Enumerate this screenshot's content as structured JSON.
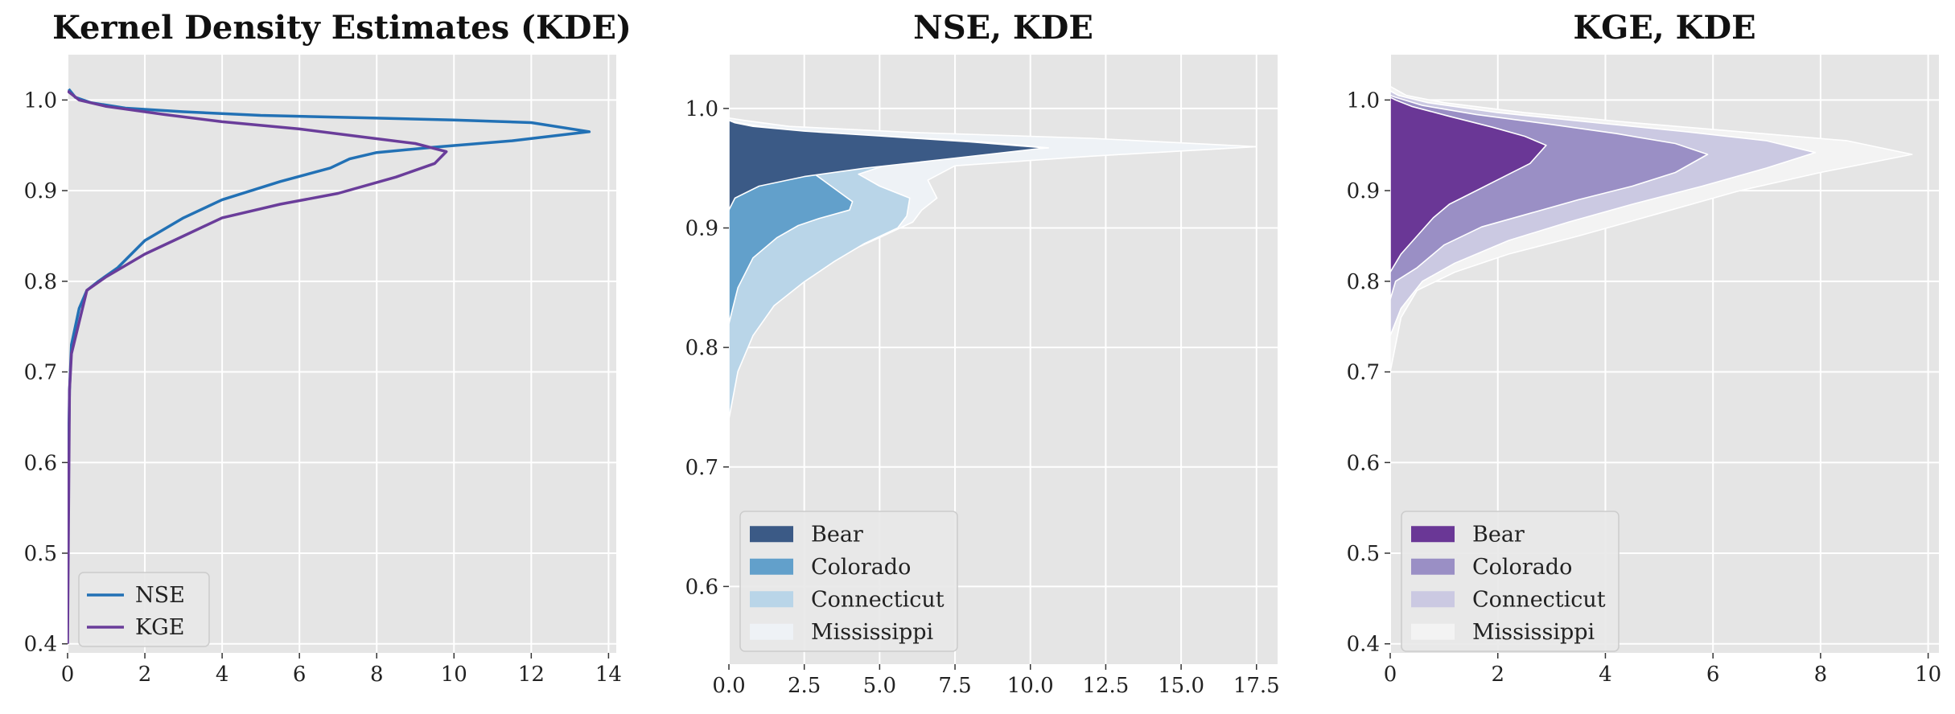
{
  "chart_data": [
    {
      "type": "line",
      "title": "Kernel Density Estimates (KDE)",
      "xlabel": "",
      "ylabel": "",
      "xlim": [
        0,
        14.2
      ],
      "ylim": [
        0.39,
        1.05
      ],
      "xticks": [
        0,
        2,
        4,
        6,
        8,
        10,
        12,
        14
      ],
      "xtick_labels": [
        "0",
        "2",
        "4",
        "6",
        "8",
        "10",
        "12",
        "14"
      ],
      "yticks": [
        0.4,
        0.5,
        0.6,
        0.7,
        0.8,
        0.9,
        1.0
      ],
      "ytick_labels": [
        "0.4",
        "0.5",
        "0.6",
        "0.7",
        "0.8",
        "0.9",
        "1.0"
      ],
      "grid": true,
      "legend": "lower-left",
      "series": [
        {
          "name": "NSE",
          "color": "#2271b5",
          "points": [
            [
              0.0,
              0.46
            ],
            [
              0.02,
              0.6
            ],
            [
              0.05,
              0.68
            ],
            [
              0.1,
              0.73
            ],
            [
              0.3,
              0.77
            ],
            [
              0.5,
              0.79
            ],
            [
              0.8,
              0.8
            ],
            [
              1.3,
              0.815
            ],
            [
              2.0,
              0.845
            ],
            [
              3.0,
              0.87
            ],
            [
              4.0,
              0.89
            ],
            [
              5.5,
              0.91
            ],
            [
              6.8,
              0.925
            ],
            [
              7.3,
              0.935
            ],
            [
              8.0,
              0.942
            ],
            [
              9.5,
              0.948
            ],
            [
              11.5,
              0.955
            ],
            [
              13.5,
              0.965
            ],
            [
              12.0,
              0.975
            ],
            [
              10.0,
              0.978
            ],
            [
              8.0,
              0.98
            ],
            [
              5.0,
              0.983
            ],
            [
              3.0,
              0.987
            ],
            [
              1.5,
              0.991
            ],
            [
              0.6,
              0.997
            ],
            [
              0.2,
              1.003
            ],
            [
              0.03,
              1.012
            ]
          ]
        },
        {
          "name": "KGE",
          "color": "#6a3d9a",
          "points": [
            [
              0.0,
              0.4
            ],
            [
              0.05,
              0.68
            ],
            [
              0.1,
              0.72
            ],
            [
              0.3,
              0.755
            ],
            [
              0.5,
              0.79
            ],
            [
              1.0,
              0.805
            ],
            [
              2.0,
              0.83
            ],
            [
              3.0,
              0.85
            ],
            [
              4.0,
              0.87
            ],
            [
              5.5,
              0.885
            ],
            [
              7.0,
              0.897
            ],
            [
              8.5,
              0.915
            ],
            [
              9.5,
              0.93
            ],
            [
              9.8,
              0.943
            ],
            [
              9.0,
              0.952
            ],
            [
              7.5,
              0.96
            ],
            [
              6.0,
              0.968
            ],
            [
              4.0,
              0.976
            ],
            [
              2.5,
              0.984
            ],
            [
              1.0,
              0.993
            ],
            [
              0.3,
              1.0
            ],
            [
              0.0,
              1.01
            ]
          ]
        }
      ]
    },
    {
      "type": "area",
      "title": "NSE, KDE",
      "xlabel": "",
      "ylabel": "",
      "xlim": [
        0,
        18.2
      ],
      "ylim": [
        0.535,
        1.045
      ],
      "xticks": [
        0,
        2.5,
        5,
        7.5,
        10,
        12.5,
        15,
        17.5
      ],
      "xtick_labels": [
        "0.0",
        "2.5",
        "5.0",
        "7.5",
        "10.0",
        "12.5",
        "15.0",
        "17.5"
      ],
      "yticks": [
        0.6,
        0.7,
        0.8,
        0.9,
        1.0
      ],
      "ytick_labels": [
        "0.6",
        "0.7",
        "0.8",
        "0.9",
        "1.0"
      ],
      "grid": true,
      "legend": "lower-left",
      "series": [
        {
          "name": "Mississippi",
          "color": "#eef2f6",
          "points": [
            [
              0,
              0.76
            ],
            [
              0.5,
              0.8
            ],
            [
              1.3,
              0.83
            ],
            [
              2.3,
              0.855
            ],
            [
              3.5,
              0.875
            ],
            [
              5.0,
              0.892
            ],
            [
              6.1,
              0.905
            ],
            [
              6.4,
              0.915
            ],
            [
              6.9,
              0.925
            ],
            [
              6.6,
              0.94
            ],
            [
              7.5,
              0.952
            ],
            [
              12.0,
              0.96
            ],
            [
              17.5,
              0.968
            ],
            [
              12.0,
              0.975
            ],
            [
              6.0,
              0.98
            ],
            [
              2.0,
              0.985
            ],
            [
              0.5,
              0.99
            ],
            [
              0,
              0.992
            ]
          ]
        },
        {
          "name": "Connecticut",
          "color": "#b9d5e8",
          "points": [
            [
              0,
              0.74
            ],
            [
              0.3,
              0.78
            ],
            [
              0.8,
              0.81
            ],
            [
              1.5,
              0.835
            ],
            [
              2.5,
              0.855
            ],
            [
              3.5,
              0.872
            ],
            [
              4.5,
              0.887
            ],
            [
              5.6,
              0.9
            ],
            [
              5.9,
              0.91
            ],
            [
              6.0,
              0.925
            ],
            [
              5.0,
              0.935
            ],
            [
              4.3,
              0.945
            ],
            [
              5.5,
              0.955
            ],
            [
              8.0,
              0.962
            ],
            [
              10.6,
              0.967
            ],
            [
              8.0,
              0.973
            ],
            [
              4.0,
              0.978
            ],
            [
              1.5,
              0.983
            ],
            [
              0.3,
              0.988
            ],
            [
              0,
              0.99
            ]
          ]
        },
        {
          "name": "Colorado",
          "color": "#62a0cb",
          "points": [
            [
              0,
              0.82
            ],
            [
              0.3,
              0.85
            ],
            [
              0.8,
              0.875
            ],
            [
              1.6,
              0.892
            ],
            [
              2.3,
              0.902
            ],
            [
              3.0,
              0.908
            ],
            [
              4.0,
              0.915
            ],
            [
              4.1,
              0.922
            ],
            [
              3.5,
              0.933
            ],
            [
              2.9,
              0.944
            ],
            [
              3.6,
              0.952
            ],
            [
              6.0,
              0.96
            ],
            [
              10.4,
              0.967
            ],
            [
              7.0,
              0.973
            ],
            [
              3.5,
              0.978
            ],
            [
              1.2,
              0.983
            ],
            [
              0.2,
              0.987
            ],
            [
              0,
              0.988
            ]
          ]
        },
        {
          "name": "Bear",
          "color": "#3b5a86",
          "points": [
            [
              0,
              0.915
            ],
            [
              0.2,
              0.925
            ],
            [
              1.0,
              0.935
            ],
            [
              2.5,
              0.943
            ],
            [
              4.5,
              0.95
            ],
            [
              7.0,
              0.957
            ],
            [
              10.5,
              0.967
            ],
            [
              8.0,
              0.972
            ],
            [
              5.0,
              0.977
            ],
            [
              2.5,
              0.981
            ],
            [
              0.8,
              0.985
            ],
            [
              0.2,
              0.988
            ],
            [
              0,
              0.99
            ]
          ]
        }
      ]
    },
    {
      "type": "area",
      "title": "KGE, KDE",
      "xlabel": "",
      "ylabel": "",
      "xlim": [
        0,
        10.2
      ],
      "ylim": [
        0.39,
        1.05
      ],
      "xticks": [
        0,
        2,
        4,
        6,
        8,
        10
      ],
      "xtick_labels": [
        "0",
        "2",
        "4",
        "6",
        "8",
        "10"
      ],
      "yticks": [
        0.4,
        0.5,
        0.6,
        0.7,
        0.8,
        0.9,
        1.0
      ],
      "ytick_labels": [
        "0.4",
        "0.5",
        "0.6",
        "0.7",
        "0.8",
        "0.9",
        "1.0"
      ],
      "grid": true,
      "legend": "lower-left",
      "series": [
        {
          "name": "Mississippi",
          "color": "#f3f3f3",
          "points": [
            [
              0,
              0.7
            ],
            [
              0.1,
              0.73
            ],
            [
              0.2,
              0.76
            ],
            [
              0.5,
              0.79
            ],
            [
              1.2,
              0.81
            ],
            [
              2.2,
              0.83
            ],
            [
              3.5,
              0.85
            ],
            [
              5.0,
              0.875
            ],
            [
              6.5,
              0.9
            ],
            [
              8.0,
              0.92
            ],
            [
              9.7,
              0.94
            ],
            [
              8.5,
              0.955
            ],
            [
              6.5,
              0.965
            ],
            [
              4.5,
              0.975
            ],
            [
              2.5,
              0.986
            ],
            [
              1.0,
              0.997
            ],
            [
              0.3,
              1.005
            ],
            [
              0,
              1.015
            ]
          ]
        },
        {
          "name": "Connecticut",
          "color": "#cbc9e2",
          "points": [
            [
              0,
              0.74
            ],
            [
              0.2,
              0.77
            ],
            [
              0.6,
              0.8
            ],
            [
              1.2,
              0.82
            ],
            [
              2.2,
              0.845
            ],
            [
              3.3,
              0.865
            ],
            [
              4.5,
              0.885
            ],
            [
              5.8,
              0.905
            ],
            [
              7.0,
              0.925
            ],
            [
              7.9,
              0.942
            ],
            [
              7.0,
              0.955
            ],
            [
              5.5,
              0.965
            ],
            [
              3.8,
              0.975
            ],
            [
              2.0,
              0.986
            ],
            [
              0.7,
              0.997
            ],
            [
              0.15,
              1.005
            ],
            [
              0,
              1.01
            ]
          ]
        },
        {
          "name": "Colorado",
          "color": "#9a8fc5",
          "points": [
            [
              0,
              0.78
            ],
            [
              0.1,
              0.8
            ],
            [
              0.5,
              0.815
            ],
            [
              1.0,
              0.84
            ],
            [
              1.7,
              0.86
            ],
            [
              2.6,
              0.875
            ],
            [
              3.5,
              0.89
            ],
            [
              4.5,
              0.905
            ],
            [
              5.3,
              0.92
            ],
            [
              5.9,
              0.94
            ],
            [
              5.3,
              0.952
            ],
            [
              4.2,
              0.963
            ],
            [
              3.0,
              0.973
            ],
            [
              1.6,
              0.984
            ],
            [
              0.6,
              0.994
            ],
            [
              0.1,
              1.003
            ],
            [
              0,
              1.005
            ]
          ]
        },
        {
          "name": "Bear",
          "color": "#6a3796",
          "points": [
            [
              0,
              0.81
            ],
            [
              0.2,
              0.83
            ],
            [
              0.5,
              0.85
            ],
            [
              0.8,
              0.87
            ],
            [
              1.1,
              0.885
            ],
            [
              1.6,
              0.9
            ],
            [
              2.1,
              0.915
            ],
            [
              2.6,
              0.93
            ],
            [
              2.9,
              0.95
            ],
            [
              2.5,
              0.96
            ],
            [
              1.9,
              0.97
            ],
            [
              1.1,
              0.982
            ],
            [
              0.4,
              0.993
            ],
            [
              0.1,
              1.0
            ],
            [
              0,
              1.003
            ]
          ]
        }
      ]
    }
  ]
}
